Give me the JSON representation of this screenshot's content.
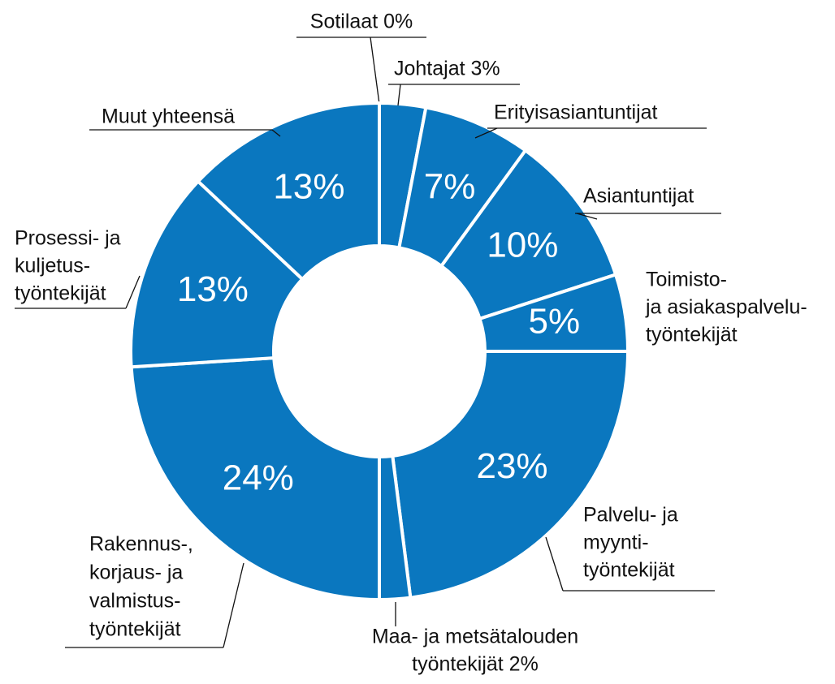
{
  "chart_data": {
    "type": "donut",
    "categories": [
      [
        "Sotilaat 0%"
      ],
      [
        "Johtajat 3%"
      ],
      [
        "Erityisasiantuntijat"
      ],
      [
        "Asiantuntijat"
      ],
      [
        "Toimisto-",
        "ja asiakaspalvelu-",
        "työntekijät"
      ],
      [
        "Palvelu- ja",
        "myynti-",
        "työntekijät"
      ],
      [
        "Maa- ja metsätalouden",
        "työntekijät 2%"
      ],
      [
        "Rakennus-,",
        "korjaus- ja",
        "valmistus-",
        "työntekijät"
      ],
      [
        "Prosessi- ja",
        "kuljetus-",
        "työntekijät"
      ],
      [
        "Muut yhteensä"
      ]
    ],
    "values": [
      0,
      3,
      7,
      10,
      5,
      23,
      2,
      24,
      13,
      13
    ],
    "value_labels": [
      null,
      null,
      "7%",
      "10%",
      "5%",
      "23%",
      null,
      "24%",
      "13%",
      "13%"
    ],
    "color": "#0a77bf"
  }
}
